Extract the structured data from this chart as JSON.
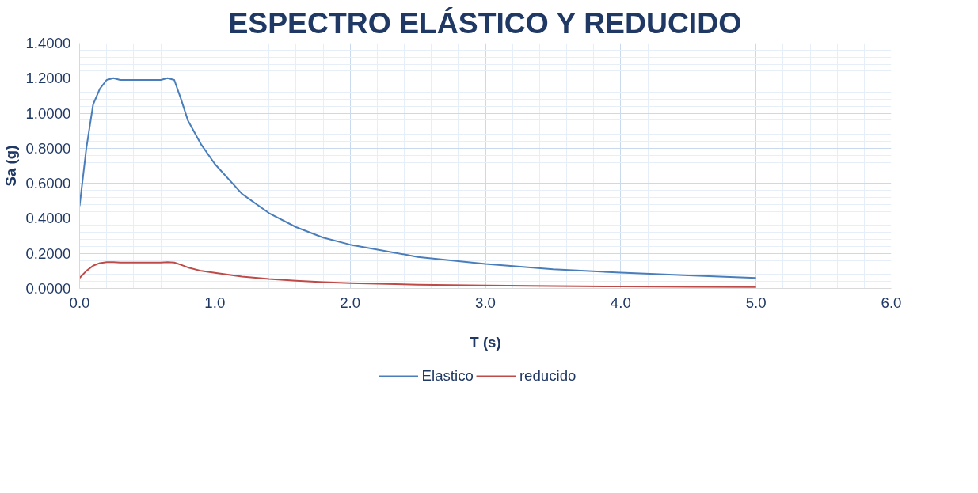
{
  "chart_data": {
    "type": "line",
    "title": "ESPECTRO ELÁSTICO Y REDUCIDO",
    "xlabel": "T (s)",
    "ylabel": "Sa (g)",
    "x": [
      0,
      0.05,
      0.1,
      0.15,
      0.2,
      0.25,
      0.3,
      0.4,
      0.5,
      0.6,
      0.65,
      0.7,
      0.75,
      0.8,
      0.9,
      1.0,
      1.2,
      1.4,
      1.6,
      1.8,
      2.0,
      2.5,
      3.0,
      3.5,
      4.0,
      4.5,
      5.0
    ],
    "series": [
      {
        "name": "Elastico",
        "color": "#4a7ebb",
        "values": [
          0.47,
          0.8,
          1.05,
          1.14,
          1.19,
          1.2,
          1.19,
          1.19,
          1.19,
          1.19,
          1.2,
          1.19,
          1.08,
          0.96,
          0.82,
          0.71,
          0.54,
          0.43,
          0.35,
          0.29,
          0.25,
          0.18,
          0.14,
          0.11,
          0.09,
          0.075,
          0.06
        ]
      },
      {
        "name": "reducido",
        "color": "#be4b48",
        "values": [
          0.06,
          0.1,
          0.13,
          0.145,
          0.15,
          0.15,
          0.148,
          0.148,
          0.148,
          0.148,
          0.15,
          0.148,
          0.135,
          0.12,
          0.1,
          0.089,
          0.068,
          0.054,
          0.044,
          0.036,
          0.031,
          0.022,
          0.017,
          0.013,
          0.011,
          0.009,
          0.008
        ]
      }
    ],
    "xlim": [
      0,
      6
    ],
    "ylim": [
      0,
      1.4
    ],
    "xticks": [
      {
        "value": 0,
        "label": "0.0"
      },
      {
        "value": 1,
        "label": "1.0"
      },
      {
        "value": 2,
        "label": "2.0"
      },
      {
        "value": 3,
        "label": "3.0"
      },
      {
        "value": 4,
        "label": "4.0"
      },
      {
        "value": 5,
        "label": "5.0"
      },
      {
        "value": 6,
        "label": "6.0"
      }
    ],
    "yticks": [
      {
        "value": 0,
        "label": "0.0000"
      },
      {
        "value": 0.2,
        "label": "0.2000"
      },
      {
        "value": 0.4,
        "label": "0.4000"
      },
      {
        "value": 0.6,
        "label": "0.6000"
      },
      {
        "value": 0.8,
        "label": "0.8000"
      },
      {
        "value": 1.0,
        "label": "1.0000"
      },
      {
        "value": 1.2,
        "label": "1.2000"
      },
      {
        "value": 1.4,
        "label": "1.4000"
      }
    ],
    "grid": true,
    "legend": "bottom",
    "marker": "none",
    "line_style": "solid"
  }
}
